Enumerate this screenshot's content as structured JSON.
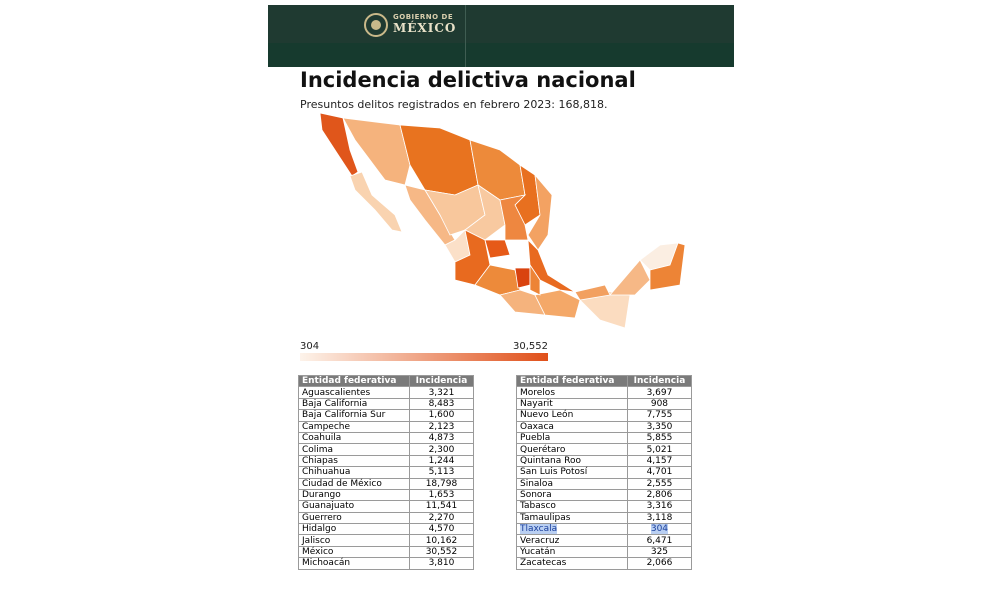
{
  "header": {
    "logo_line1": "GOBIERNO DE",
    "logo_line2": "MÉXICO"
  },
  "title": "Incidencia delictiva nacional",
  "subtitle": "Presuntos delitos registrados en febrero 2023: 168,818.",
  "legend": {
    "min": "304",
    "max": "30,552"
  },
  "tables": [
    {
      "columns": [
        "Entidad federativa",
        "Incidencia"
      ],
      "rows": [
        [
          "Aguascalientes",
          "3,321"
        ],
        [
          "Baja California",
          "8,483"
        ],
        [
          "Baja California Sur",
          "1,600"
        ],
        [
          "Campeche",
          "2,123"
        ],
        [
          "Coahuila",
          "4,873"
        ],
        [
          "Colima",
          "2,300"
        ],
        [
          "Chiapas",
          "1,244"
        ],
        [
          "Chihuahua",
          "5,113"
        ],
        [
          "Ciudad de México",
          "18,798"
        ],
        [
          "Durango",
          "1,653"
        ],
        [
          "Guanajuato",
          "11,541"
        ],
        [
          "Guerrero",
          "2,270"
        ],
        [
          "Hidalgo",
          "4,570"
        ],
        [
          "Jalisco",
          "10,162"
        ],
        [
          "México",
          "30,552"
        ],
        [
          "Michoacán",
          "3,810"
        ]
      ]
    },
    {
      "columns": [
        "Entidad federativa",
        "Incidencia"
      ],
      "rows": [
        [
          "Morelos",
          "3,697"
        ],
        [
          "Nayarit",
          "908"
        ],
        [
          "Nuevo León",
          "7,755"
        ],
        [
          "Oaxaca",
          "3,350"
        ],
        [
          "Puebla",
          "5,855"
        ],
        [
          "Querétaro",
          "5,021"
        ],
        [
          "Quintana Roo",
          "4,157"
        ],
        [
          "San Luis Potosí",
          "4,701"
        ],
        [
          "Sinaloa",
          "2,555"
        ],
        [
          "Sonora",
          "2,806"
        ],
        [
          "Tabasco",
          "3,316"
        ],
        [
          "Tamaulipas",
          "3,118"
        ],
        [
          "Tlaxcala",
          "304"
        ],
        [
          "Veracruz",
          "6,471"
        ],
        [
          "Yucatán",
          "325"
        ],
        [
          "Zacatecas",
          "2,066"
        ]
      ]
    }
  ]
}
